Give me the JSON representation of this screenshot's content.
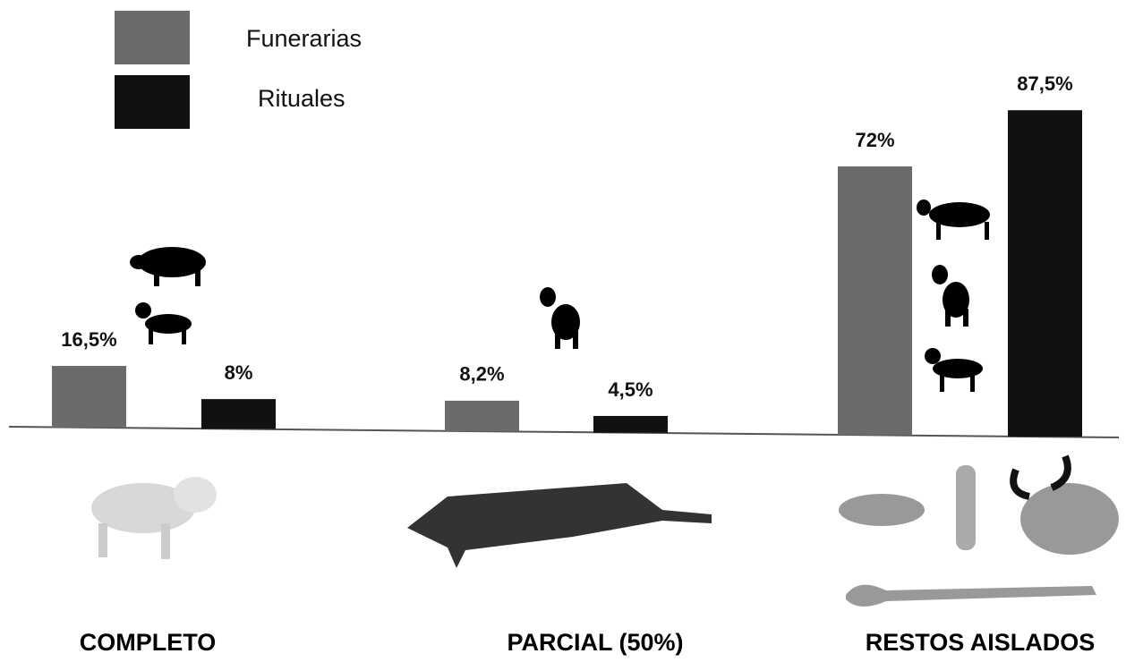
{
  "chart_data": {
    "type": "bar",
    "categories": [
      "COMPLETO",
      "PARCIAL (50%)",
      "RESTOS AISLADOS"
    ],
    "series": [
      {
        "name": "Funerarias",
        "color": "#6b6b6b",
        "values": [
          16.5,
          8.2,
          72
        ],
        "value_labels": [
          "16,5%",
          "8,2%",
          "72%"
        ]
      },
      {
        "name": "Rituales",
        "color": "#111111",
        "values": [
          8,
          4.5,
          87.5
        ],
        "value_labels": [
          "8%",
          "4,5%",
          "87,5%"
        ]
      }
    ]
  }
}
